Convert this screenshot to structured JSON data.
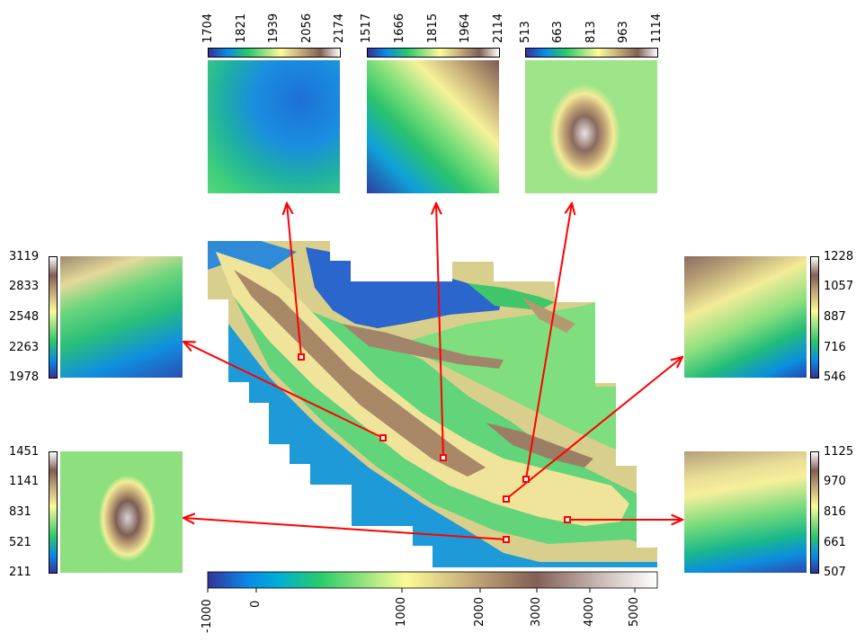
{
  "colors": {
    "arrow": "#ff0000",
    "marker": "#ff0000"
  },
  "main_colorbar": {
    "ticks": [
      "-1000",
      "0",
      "1000",
      "2000",
      "3000",
      "4000",
      "5000"
    ],
    "scale": "terrain (non-linear)"
  },
  "insets": {
    "top_left": {
      "ticks": [
        "1704",
        "1821",
        "1939",
        "2056",
        "2174"
      ]
    },
    "top_mid": {
      "ticks": [
        "1517",
        "1666",
        "1815",
        "1964",
        "2114"
      ]
    },
    "top_right": {
      "ticks": [
        "513",
        "663",
        "813",
        "963",
        "1114"
      ]
    },
    "left_upper": {
      "ticks": [
        "3119",
        "2833",
        "2548",
        "2263",
        "1978"
      ]
    },
    "left_lower": {
      "ticks": [
        "1451",
        "1141",
        "831",
        "521",
        "211"
      ]
    },
    "right_upper": {
      "ticks": [
        "1228",
        "1057",
        "887",
        "716",
        "546"
      ]
    },
    "right_lower": {
      "ticks": [
        "1125",
        "970",
        "816",
        "661",
        "507"
      ]
    }
  }
}
